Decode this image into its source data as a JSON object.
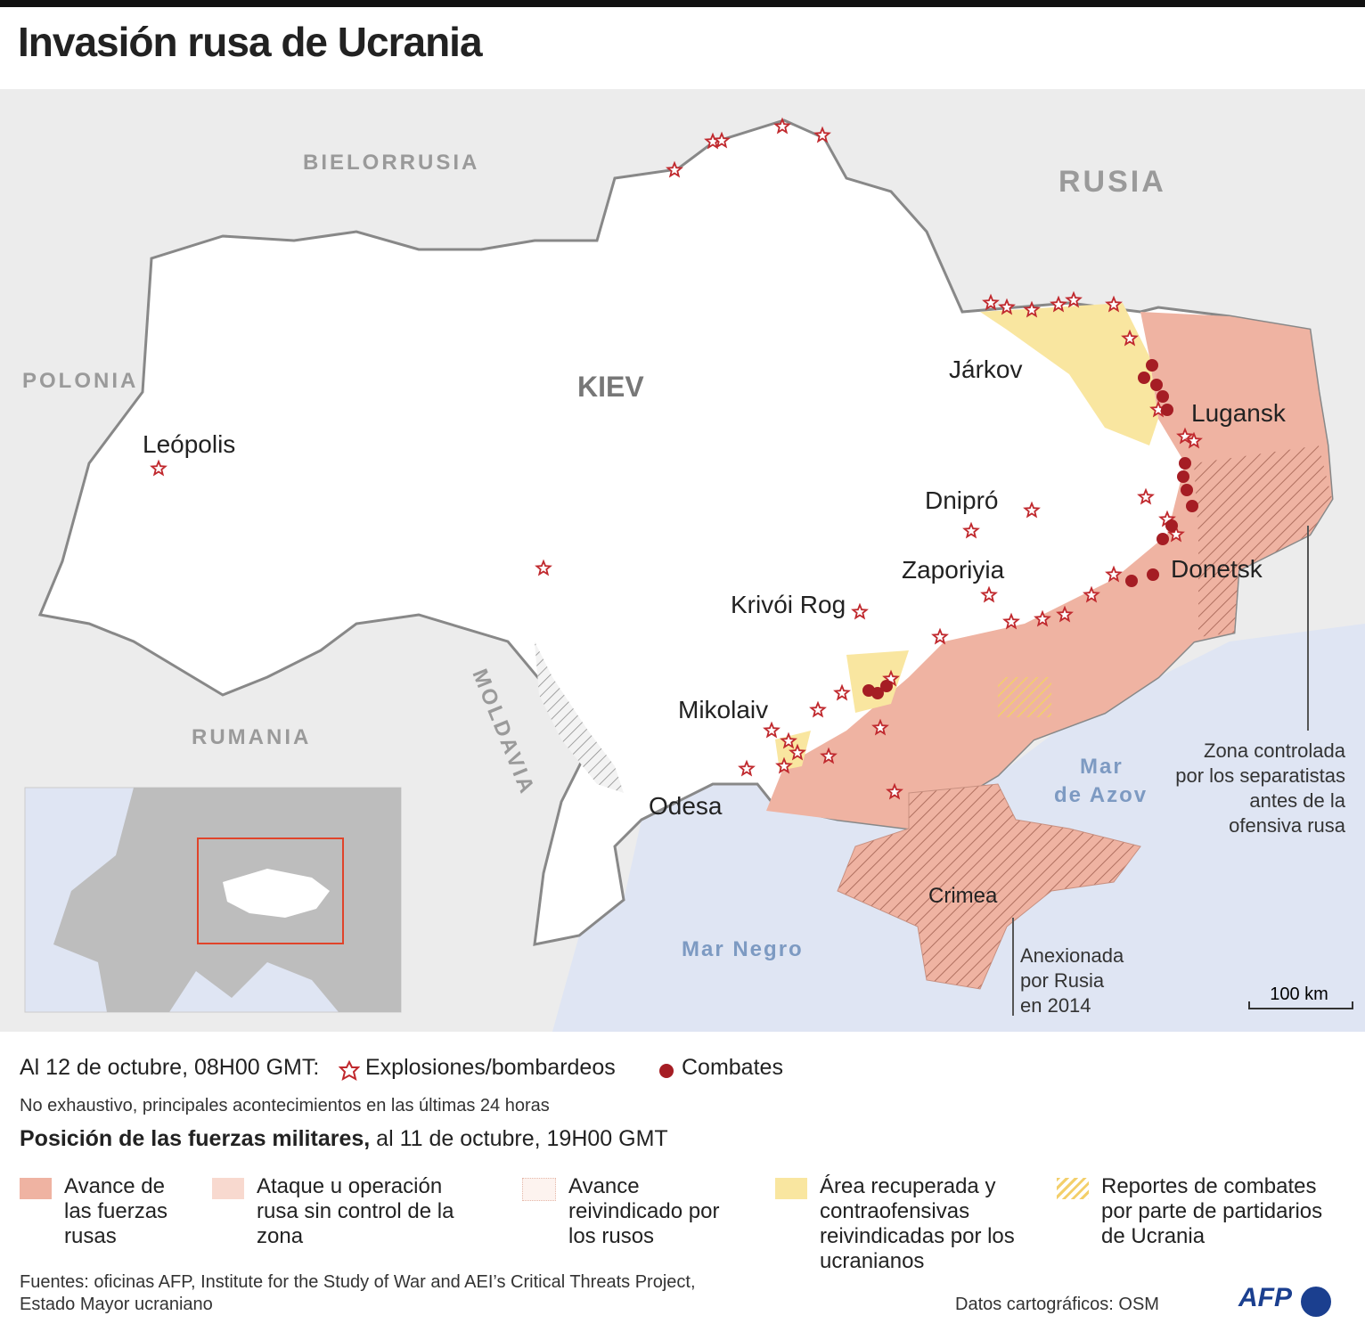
{
  "title": "Invasión rusa de Ucrania",
  "map": {
    "countries": {
      "belarus": "BIELORRUSIA",
      "russia": "RUSIA",
      "poland": "POLONIA",
      "romania": "RUMANIA",
      "moldova": "MOLDAVIA"
    },
    "capital": "KIEV",
    "cities": [
      "Leópolis",
      "Járkov",
      "Lugansk",
      "Dnipró",
      "Zaporiyia",
      "Donetsk",
      "Krivói Rog",
      "Mikolaiv",
      "Odesa",
      "Crimea"
    ],
    "seas": {
      "black_sea": "Mar Negro",
      "azov": [
        "Mar",
        "de Azov"
      ]
    },
    "annotations": {
      "separatists": [
        "Zona controlada",
        "por los separatistas",
        "antes  de la",
        "ofensiva rusa"
      ],
      "annexed": [
        "Anexionada",
        "por Rusia",
        "en 2014"
      ]
    },
    "scale": "100 km"
  },
  "legend": {
    "timestamp": "Al 12 de octubre, 08H00 GMT:",
    "explosions": "Explosiones/bombardeos",
    "combat": "Combates",
    "note": "No exhaustivo, principales acontecimientos en las últimas 24 horas",
    "positions_heading": "Posición de las fuerzas militares,",
    "positions_date": "al 11 de octubre, 19H00 GMT",
    "items": [
      "Avance de las fuerzas rusas",
      "Ataque u operación rusa sin control de la zona",
      "Avance reivindicado por los rusos",
      "Área recuperada y contraofensivas reivindicadas por los ucranianos",
      "Reportes de combates por parte de partidarios de Ucrania"
    ]
  },
  "footer": {
    "sources": [
      "Fuentes: oficinas AFP, Institute for the Study of War and AEI’s Critical Threats Project,",
      "Estado Mayor ucraniano"
    ],
    "map_data": "Datos cartográficos: OSM",
    "logo": "AFP"
  }
}
